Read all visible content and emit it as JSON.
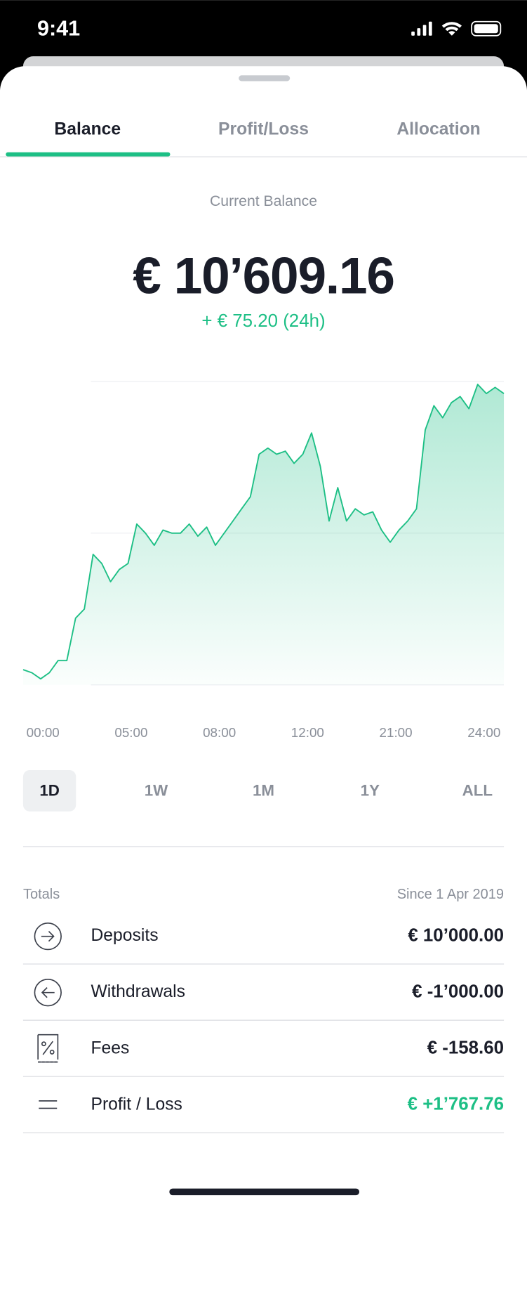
{
  "status_bar": {
    "time": "9:41"
  },
  "tabs": [
    "Balance",
    "Profit/Loss",
    "Allocation"
  ],
  "balance": {
    "label": "Current Balance",
    "amount": "€ 10’609.16",
    "change": "+ € 75.20 (24h)"
  },
  "chart_data": {
    "type": "line",
    "series": [
      {
        "color": "#1dbf85",
        "values": [
          5,
          4,
          2,
          4,
          8,
          8,
          22,
          25,
          43,
          40,
          34,
          38,
          40,
          53,
          50,
          46,
          51,
          50,
          50,
          53,
          49,
          52,
          46,
          50,
          54,
          58,
          62,
          76,
          78,
          76,
          77,
          73,
          76,
          83,
          72,
          54,
          65,
          54,
          58,
          56,
          57,
          51,
          47,
          51,
          54,
          58,
          84,
          92,
          88,
          93,
          95,
          91,
          99,
          96,
          98,
          96
        ]
      }
    ],
    "xtick_labels": [
      "00:00",
      "05:00",
      "08:00",
      "12:00",
      "21:00",
      "24:00"
    ],
    "ylim": [
      0,
      100
    ],
    "yticks": [
      0,
      50,
      100
    ],
    "grid": true
  },
  "periods": [
    "1D",
    "1W",
    "1M",
    "1Y",
    "ALL"
  ],
  "totals": {
    "title": "Totals",
    "since": "Since 1 Apr 2019",
    "rows": [
      {
        "label": "Deposits",
        "value": "€ 10’000.00"
      },
      {
        "label": "Withdrawals",
        "value": "€ -1’000.00"
      },
      {
        "label": "Fees",
        "value": "€ -158.60"
      },
      {
        "label": "Profit / Loss",
        "value": "€ +1’767.76"
      }
    ]
  }
}
